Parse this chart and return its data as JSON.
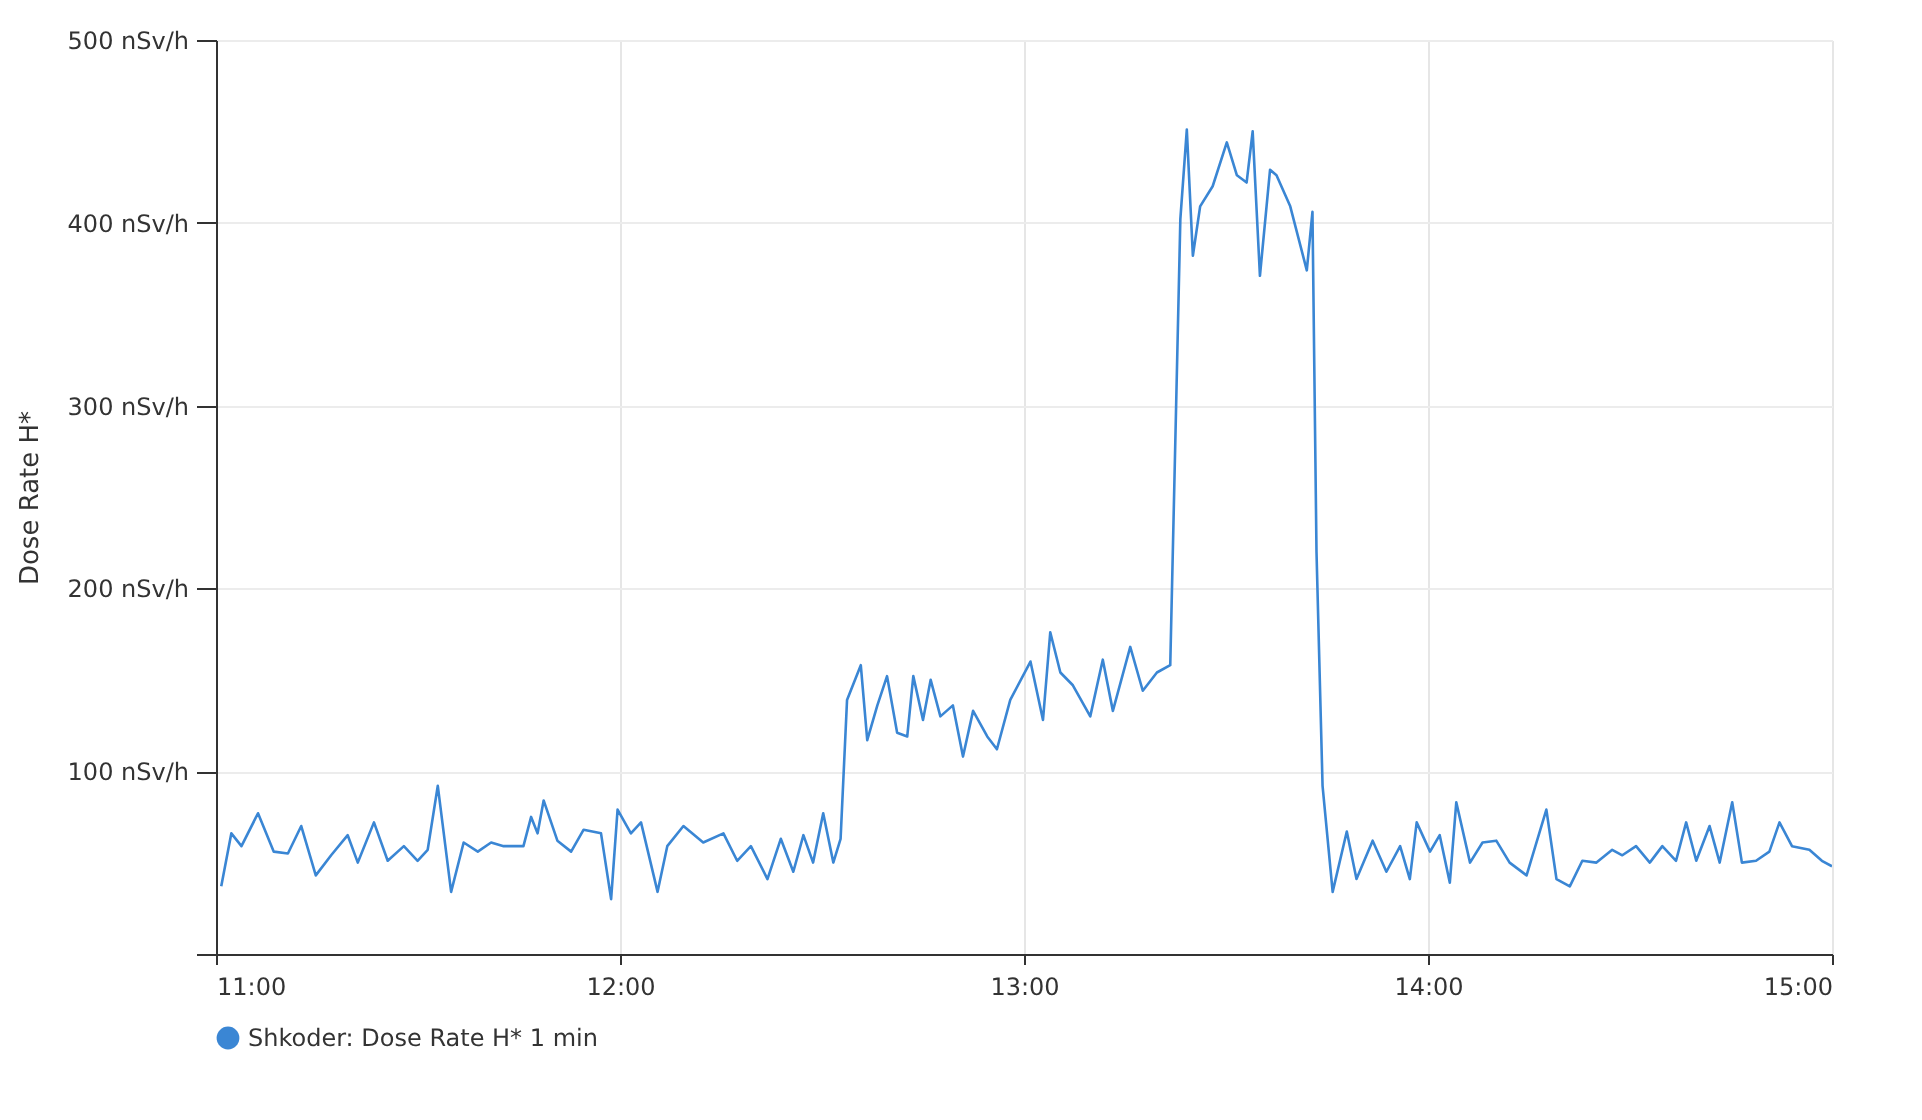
{
  "chart_data": {
    "type": "line",
    "ylabel": "Dose Rate H*",
    "legend": "bottom",
    "grid": true,
    "marker": "none",
    "line_style": "solid",
    "xlim": [
      11,
      15
    ],
    "xticks": [
      {
        "value": 11,
        "label": "11:00"
      },
      {
        "value": 12,
        "label": "12:00"
      },
      {
        "value": 13,
        "label": "13:00"
      },
      {
        "value": 14,
        "label": "14:00"
      },
      {
        "value": 15,
        "label": "15:00"
      }
    ],
    "ylim": [
      0,
      500
    ],
    "yticks": [
      {
        "value": 0,
        "label": null
      },
      {
        "value": 100,
        "label": "100 nSv/h"
      },
      {
        "value": 200,
        "label": "200 nSv/h"
      },
      {
        "value": 300,
        "label": "300 nSv/h"
      },
      {
        "value": 400,
        "label": "400 nSv/h"
      },
      {
        "value": 500,
        "label": "500 nSv/h"
      }
    ],
    "x": [
      11.013,
      11.038,
      11.063,
      11.104,
      11.143,
      11.178,
      11.211,
      11.247,
      11.285,
      11.326,
      11.351,
      11.391,
      11.425,
      11.465,
      11.499,
      11.524,
      11.549,
      11.582,
      11.613,
      11.648,
      11.681,
      11.712,
      11.761,
      11.78,
      11.796,
      11.811,
      11.845,
      11.879,
      11.91,
      11.953,
      11.978,
      11.994,
      12.027,
      12.052,
      12.093,
      12.117,
      12.157,
      12.206,
      12.256,
      12.29,
      12.324,
      12.365,
      12.398,
      12.429,
      12.454,
      12.478,
      12.503,
      12.528,
      12.546,
      12.562,
      12.596,
      12.612,
      12.637,
      12.661,
      12.686,
      12.711,
      12.726,
      12.75,
      12.769,
      12.793,
      12.824,
      12.849,
      12.874,
      12.909,
      12.933,
      12.966,
      13.016,
      13.047,
      13.065,
      13.09,
      13.121,
      13.164,
      13.195,
      13.22,
      13.263,
      13.294,
      13.329,
      13.362,
      13.387,
      13.403,
      13.418,
      13.436,
      13.467,
      13.502,
      13.527,
      13.551,
      13.566,
      13.584,
      13.609,
      13.625,
      13.659,
      13.7,
      13.714,
      13.724,
      13.739,
      13.764,
      13.799,
      13.823,
      13.863,
      13.897,
      13.931,
      13.955,
      13.972,
      14.005,
      14.029,
      14.054,
      14.07,
      14.104,
      14.135,
      14.169,
      14.202,
      14.244,
      14.293,
      14.318,
      14.351,
      14.382,
      14.417,
      14.456,
      14.481,
      14.515,
      14.549,
      14.58,
      14.614,
      14.639,
      14.664,
      14.697,
      14.722,
      14.753,
      14.777,
      14.812,
      14.845,
      14.87,
      14.901,
      14.944,
      14.975,
      15.0
    ],
    "series": [
      {
        "name": "Shkoder: Dose Rate H* 1 min",
        "color": "#3a86d4",
        "values": [
          37,
          66,
          59,
          77,
          56,
          55,
          70,
          43,
          54,
          65,
          50,
          72,
          51,
          59,
          51,
          57,
          92,
          34,
          61,
          56,
          61,
          59,
          59,
          75,
          66,
          84,
          62,
          56,
          68,
          66,
          30,
          79,
          66,
          72,
          34,
          59,
          70,
          61,
          66,
          51,
          59,
          41,
          63,
          45,
          65,
          50,
          77,
          50,
          63,
          139,
          158,
          117,
          136,
          152,
          121,
          119,
          152,
          128,
          150,
          130,
          136,
          108,
          133,
          119,
          112,
          139,
          160,
          128,
          176,
          154,
          147,
          130,
          161,
          133,
          168,
          144,
          154,
          158,
          402,
          451,
          382,
          409,
          420,
          444,
          426,
          422,
          450,
          371,
          429,
          426,
          409,
          374,
          406,
          220,
          92,
          34,
          67,
          41,
          62,
          45,
          59,
          41,
          72,
          56,
          65,
          39,
          83,
          50,
          61,
          62,
          50,
          43,
          79,
          41,
          37,
          51,
          50,
          57,
          54,
          59,
          50,
          59,
          51,
          72,
          51,
          70,
          50,
          83,
          50,
          51,
          56,
          72,
          59,
          57,
          51,
          48
        ]
      }
    ]
  }
}
